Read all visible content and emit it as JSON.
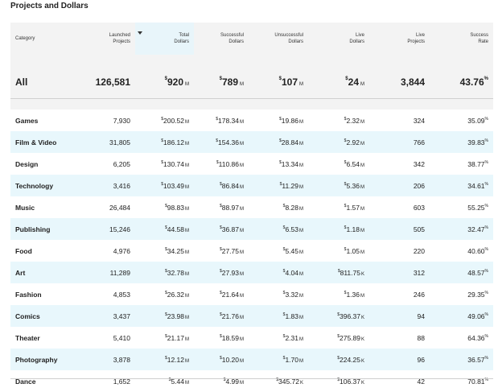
{
  "page": {
    "title": "Projects and Dollars"
  },
  "columns": [
    {
      "line1": "Category",
      "line2": ""
    },
    {
      "line1": "Launched",
      "line2": "Projects"
    },
    {
      "line1": "Total",
      "line2": "Dollars"
    },
    {
      "line1": "Successful",
      "line2": "Dollars"
    },
    {
      "line1": "Unsuccessful",
      "line2": "Dollars"
    },
    {
      "line1": "Live",
      "line2": "Dollars"
    },
    {
      "line1": "Live",
      "line2": "Projects"
    },
    {
      "line1": "Success",
      "line2": "Rate"
    }
  ],
  "summary": {
    "category": "All",
    "launched": "126,581",
    "total": {
      "pre": "$",
      "num": "920",
      "suf": "M"
    },
    "successful": {
      "pre": "$",
      "num": "789",
      "suf": "M"
    },
    "unsuccessful": {
      "pre": "$",
      "num": "107",
      "suf": "M"
    },
    "live_dollars": {
      "pre": "$",
      "num": "24",
      "suf": "M"
    },
    "live_projects": "3,844",
    "rate": {
      "num": "43.76",
      "suf": "%"
    }
  },
  "rows": [
    {
      "category": "Games",
      "launched": "7,930",
      "total": {
        "pre": "$",
        "num": "200.52",
        "suf": "M"
      },
      "successful": {
        "pre": "$",
        "num": "178.34",
        "suf": "M"
      },
      "unsuccessful": {
        "pre": "$",
        "num": "19.86",
        "suf": "M"
      },
      "live_dollars": {
        "pre": "$",
        "num": "2.32",
        "suf": "M"
      },
      "live_projects": "324",
      "rate": {
        "num": "35.09",
        "suf": "%"
      }
    },
    {
      "category": "Film & Video",
      "launched": "31,805",
      "total": {
        "pre": "$",
        "num": "186.12",
        "suf": "M"
      },
      "successful": {
        "pre": "$",
        "num": "154.36",
        "suf": "M"
      },
      "unsuccessful": {
        "pre": "$",
        "num": "28.84",
        "suf": "M"
      },
      "live_dollars": {
        "pre": "$",
        "num": "2.92",
        "suf": "M"
      },
      "live_projects": "766",
      "rate": {
        "num": "39.83",
        "suf": "%"
      }
    },
    {
      "category": "Design",
      "launched": "6,205",
      "total": {
        "pre": "$",
        "num": "130.74",
        "suf": "M"
      },
      "successful": {
        "pre": "$",
        "num": "110.86",
        "suf": "M"
      },
      "unsuccessful": {
        "pre": "$",
        "num": "13.34",
        "suf": "M"
      },
      "live_dollars": {
        "pre": "$",
        "num": "6.54",
        "suf": "M"
      },
      "live_projects": "342",
      "rate": {
        "num": "38.77",
        "suf": "%"
      }
    },
    {
      "category": "Technology",
      "launched": "3,416",
      "total": {
        "pre": "$",
        "num": "103.49",
        "suf": "M"
      },
      "successful": {
        "pre": "$",
        "num": "86.84",
        "suf": "M"
      },
      "unsuccessful": {
        "pre": "$",
        "num": "11.29",
        "suf": "M"
      },
      "live_dollars": {
        "pre": "$",
        "num": "5.36",
        "suf": "M"
      },
      "live_projects": "206",
      "rate": {
        "num": "34.61",
        "suf": "%"
      }
    },
    {
      "category": "Music",
      "launched": "26,484",
      "total": {
        "pre": "$",
        "num": "98.83",
        "suf": "M"
      },
      "successful": {
        "pre": "$",
        "num": "88.97",
        "suf": "M"
      },
      "unsuccessful": {
        "pre": "$",
        "num": "8.28",
        "suf": "M"
      },
      "live_dollars": {
        "pre": "$",
        "num": "1.57",
        "suf": "M"
      },
      "live_projects": "603",
      "rate": {
        "num": "55.25",
        "suf": "%"
      }
    },
    {
      "category": "Publishing",
      "launched": "15,246",
      "total": {
        "pre": "$",
        "num": "44.58",
        "suf": "M"
      },
      "successful": {
        "pre": "$",
        "num": "36.87",
        "suf": "M"
      },
      "unsuccessful": {
        "pre": "$",
        "num": "6.53",
        "suf": "M"
      },
      "live_dollars": {
        "pre": "$",
        "num": "1.18",
        "suf": "M"
      },
      "live_projects": "505",
      "rate": {
        "num": "32.47",
        "suf": "%"
      }
    },
    {
      "category": "Food",
      "launched": "4,976",
      "total": {
        "pre": "$",
        "num": "34.25",
        "suf": "M"
      },
      "successful": {
        "pre": "$",
        "num": "27.75",
        "suf": "M"
      },
      "unsuccessful": {
        "pre": "$",
        "num": "5.45",
        "suf": "M"
      },
      "live_dollars": {
        "pre": "$",
        "num": "1.05",
        "suf": "M"
      },
      "live_projects": "220",
      "rate": {
        "num": "40.60",
        "suf": "%"
      }
    },
    {
      "category": "Art",
      "launched": "11,289",
      "total": {
        "pre": "$",
        "num": "32.78",
        "suf": "M"
      },
      "successful": {
        "pre": "$",
        "num": "27.93",
        "suf": "M"
      },
      "unsuccessful": {
        "pre": "$",
        "num": "4.04",
        "suf": "M"
      },
      "live_dollars": {
        "pre": "$",
        "num": "811.75",
        "suf": "K"
      },
      "live_projects": "312",
      "rate": {
        "num": "48.57",
        "suf": "%"
      }
    },
    {
      "category": "Fashion",
      "launched": "4,853",
      "total": {
        "pre": "$",
        "num": "26.32",
        "suf": "M"
      },
      "successful": {
        "pre": "$",
        "num": "21.64",
        "suf": "M"
      },
      "unsuccessful": {
        "pre": "$",
        "num": "3.32",
        "suf": "M"
      },
      "live_dollars": {
        "pre": "$",
        "num": "1.36",
        "suf": "M"
      },
      "live_projects": "246",
      "rate": {
        "num": "29.35",
        "suf": "%"
      }
    },
    {
      "category": "Comics",
      "launched": "3,437",
      "total": {
        "pre": "$",
        "num": "23.98",
        "suf": "M"
      },
      "successful": {
        "pre": "$",
        "num": "21.76",
        "suf": "M"
      },
      "unsuccessful": {
        "pre": "$",
        "num": "1.83",
        "suf": "M"
      },
      "live_dollars": {
        "pre": "$",
        "num": "396.37",
        "suf": "K"
      },
      "live_projects": "94",
      "rate": {
        "num": "49.06",
        "suf": "%"
      }
    },
    {
      "category": "Theater",
      "launched": "5,410",
      "total": {
        "pre": "$",
        "num": "21.17",
        "suf": "M"
      },
      "successful": {
        "pre": "$",
        "num": "18.59",
        "suf": "M"
      },
      "unsuccessful": {
        "pre": "$",
        "num": "2.31",
        "suf": "M"
      },
      "live_dollars": {
        "pre": "$",
        "num": "275.89",
        "suf": "K"
      },
      "live_projects": "88",
      "rate": {
        "num": "64.36",
        "suf": "%"
      }
    },
    {
      "category": "Photography",
      "launched": "3,878",
      "total": {
        "pre": "$",
        "num": "12.12",
        "suf": "M"
      },
      "successful": {
        "pre": "$",
        "num": "10.20",
        "suf": "M"
      },
      "unsuccessful": {
        "pre": "$",
        "num": "1.70",
        "suf": "M"
      },
      "live_dollars": {
        "pre": "$",
        "num": "224.25",
        "suf": "K"
      },
      "live_projects": "96",
      "rate": {
        "num": "36.57",
        "suf": "%"
      }
    },
    {
      "category": "Dance",
      "launched": "1,652",
      "total": {
        "pre": "$",
        "num": "5.44",
        "suf": "M"
      },
      "successful": {
        "pre": "$",
        "num": "4.99",
        "suf": "M"
      },
      "unsuccessful": {
        "pre": "$",
        "num": "345.72",
        "suf": "K"
      },
      "live_dollars": {
        "pre": "$",
        "num": "106.37",
        "suf": "K"
      },
      "live_projects": "42",
      "rate": {
        "num": "70.81",
        "suf": "%"
      }
    }
  ]
}
